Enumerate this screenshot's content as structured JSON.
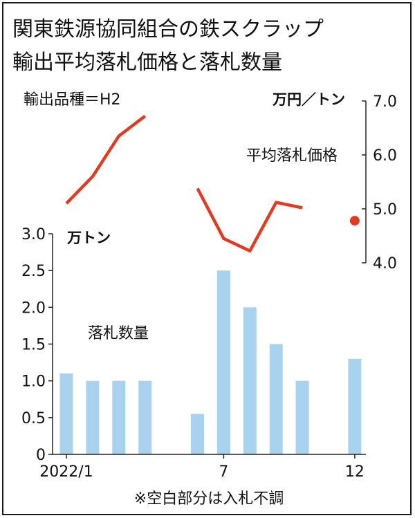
{
  "title_line1": "関東鉄源協同組合の鉄スクラップ",
  "title_line2": "輸出平均落札価格と落札数量",
  "product_note": "輸出品種＝H2",
  "footnote": "※空白部分は入札不調",
  "chart_data": {
    "type": "bar+line",
    "categories": [
      "2022/1",
      "2",
      "3",
      "4",
      "5",
      "6",
      "7",
      "8",
      "9",
      "10",
      "11",
      "12"
    ],
    "x_tick_labels": [
      {
        "index": 0,
        "label": "2022/1"
      },
      {
        "index": 6,
        "label": "7"
      },
      {
        "index": 11,
        "label": "12"
      }
    ],
    "bar_series": {
      "name": "落札数量",
      "unit": "万トン",
      "values": [
        1.1,
        1.0,
        1.0,
        1.0,
        null,
        0.55,
        2.5,
        2.0,
        1.5,
        1.0,
        null,
        1.3
      ],
      "ylim": [
        0,
        3.0
      ],
      "ticks": [
        "3.0",
        "2.5",
        "2.0",
        "1.5",
        "1.0",
        "0.5",
        "0"
      ],
      "color": "#a9d2ee"
    },
    "line_series": {
      "name": "平均落札価格",
      "unit": "万円／トン",
      "values": [
        5.1,
        5.6,
        6.35,
        6.72,
        null,
        5.38,
        4.45,
        4.22,
        5.12,
        5.02,
        null,
        4.78
      ],
      "ylim": [
        4.0,
        7.0
      ],
      "ticks": [
        "7.0",
        "6.0",
        "5.0",
        "4.0"
      ],
      "color": "#e33b22"
    }
  }
}
